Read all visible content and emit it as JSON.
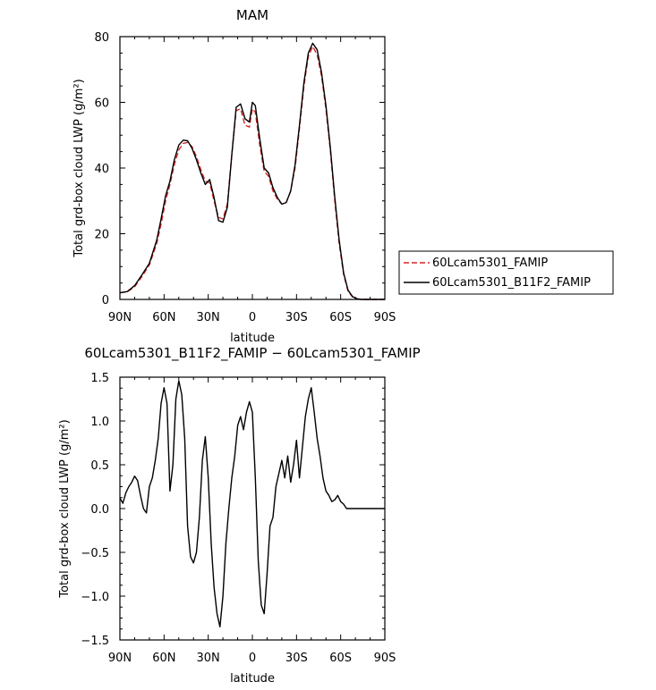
{
  "chart_data": [
    {
      "type": "line",
      "title": "MAM",
      "xlabel": "latitude",
      "ylabel": "Total grd-box cloud LWP",
      "yunit": "(g/m²)",
      "xlim": [
        90,
        -90
      ],
      "ylim": [
        0,
        80
      ],
      "xticks": [
        90,
        60,
        30,
        0,
        -30,
        -60,
        -90
      ],
      "xtick_labels": [
        "90N",
        "60N",
        "30N",
        "0",
        "30S",
        "60S",
        "90S"
      ],
      "yticks": [
        0,
        20,
        40,
        60,
        80
      ],
      "ytick_labels": [
        "0",
        "20",
        "40",
        "60",
        "80"
      ],
      "legend_position": "right",
      "series": [
        {
          "name": "60Lcam5301_FAMIP",
          "color": "#d62728",
          "dash": "dashed",
          "x": [
            90,
            85,
            80,
            75,
            70,
            65,
            62,
            59,
            56,
            53,
            50,
            47,
            44,
            41,
            38,
            35,
            32,
            29,
            26,
            23,
            20,
            17,
            14,
            11,
            8,
            5,
            2,
            0,
            -2,
            -5,
            -8,
            -11,
            -14,
            -17,
            -20,
            -23,
            -26,
            -29,
            -32,
            -35,
            -38,
            -41,
            -44,
            -47,
            -50,
            -53,
            -56,
            -59,
            -62,
            -65,
            -68,
            -71,
            -74,
            -77,
            -80,
            -85,
            -90
          ],
          "y": [
            2.0,
            2.3,
            3.8,
            7.0,
            10.5,
            17.0,
            23.0,
            30.0,
            35.0,
            41.0,
            45.5,
            47.5,
            47.8,
            46.5,
            43.5,
            39.5,
            36.0,
            35.5,
            30.0,
            25.0,
            24.5,
            29.0,
            44.0,
            57.5,
            58.0,
            53.0,
            52.5,
            58.0,
            57.0,
            47.0,
            39.0,
            37.5,
            33.0,
            30.5,
            29.0,
            29.5,
            33.0,
            40.0,
            52.0,
            65.0,
            74.0,
            77.0,
            74.5,
            68.0,
            58.0,
            45.0,
            30.0,
            17.0,
            7.5,
            2.5,
            0.8,
            0.2,
            0.0,
            0.0,
            0.0,
            0.0,
            0.0
          ]
        },
        {
          "name": "60Lcam5301_B11F2_FAMIP",
          "color": "#000000",
          "dash": "solid",
          "x": [
            90,
            85,
            80,
            75,
            70,
            65,
            62,
            59,
            56,
            53,
            50,
            47,
            44,
            41,
            38,
            35,
            32,
            29,
            26,
            23,
            20,
            17,
            14,
            11,
            8,
            5,
            2,
            0,
            -2,
            -5,
            -8,
            -11,
            -14,
            -17,
            -20,
            -23,
            -26,
            -29,
            -32,
            -35,
            -38,
            -41,
            -44,
            -47,
            -50,
            -53,
            -56,
            -59,
            -62,
            -65,
            -68,
            -71,
            -74,
            -77,
            -80,
            -85,
            -90
          ],
          "y": [
            2.0,
            2.4,
            4.2,
            7.5,
            11.0,
            18.0,
            24.5,
            31.5,
            36.0,
            42.5,
            47.0,
            48.5,
            48.3,
            46.0,
            42.5,
            38.5,
            35.0,
            36.5,
            31.0,
            24.0,
            23.5,
            28.0,
            44.0,
            58.5,
            59.5,
            55.0,
            54.0,
            60.0,
            59.0,
            49.0,
            40.0,
            38.5,
            34.0,
            31.0,
            29.0,
            29.5,
            33.0,
            41.0,
            53.0,
            66.0,
            75.0,
            78.0,
            76.0,
            69.0,
            59.0,
            46.0,
            31.0,
            18.0,
            8.0,
            2.8,
            0.9,
            0.2,
            0.0,
            0.0,
            0.0,
            0.0,
            0.0
          ]
        }
      ]
    },
    {
      "type": "line",
      "title": "60Lcam5301_B11F2_FAMIP − 60Lcam5301_FAMIP",
      "xlabel": "latitude",
      "ylabel": "Total grd-box cloud LWP",
      "yunit": "(g/m²)",
      "xlim": [
        90,
        -90
      ],
      "ylim": [
        -1.5,
        1.5
      ],
      "xticks": [
        90,
        60,
        30,
        0,
        -30,
        -60,
        -90
      ],
      "xtick_labels": [
        "90N",
        "60N",
        "30N",
        "0",
        "30S",
        "60S",
        "90S"
      ],
      "yticks": [
        -1.5,
        -1.0,
        -0.5,
        0.0,
        0.5,
        1.0,
        1.5
      ],
      "ytick_labels": [
        "−1.5",
        "−1.0",
        "−0.5",
        "0.0",
        "0.5",
        "1.0",
        "1.5"
      ],
      "series": [
        {
          "color": "#000000",
          "dash": "solid",
          "x": [
            90,
            88,
            86,
            84,
            82,
            80,
            78,
            76,
            74,
            72,
            70,
            68,
            66,
            64,
            62,
            60,
            58,
            56,
            54,
            52,
            50,
            48,
            46,
            44,
            42,
            40,
            38,
            36,
            34,
            32,
            30,
            28,
            26,
            24,
            22,
            20,
            18,
            16,
            14,
            12,
            10,
            8,
            6,
            4,
            2,
            0,
            -2,
            -4,
            -6,
            -8,
            -10,
            -12,
            -14,
            -16,
            -18,
            -20,
            -22,
            -24,
            -26,
            -28,
            -30,
            -32,
            -34,
            -36,
            -38,
            -40,
            -42,
            -44,
            -46,
            -48,
            -50,
            -52,
            -54,
            -56,
            -58,
            -60,
            -62,
            -64,
            -66,
            -68,
            -70,
            -72,
            -74,
            -76,
            -78,
            -80,
            -85,
            -90
          ],
          "y": [
            0.12,
            0.06,
            0.18,
            0.25,
            0.3,
            0.37,
            0.32,
            0.15,
            0.0,
            -0.05,
            0.25,
            0.35,
            0.55,
            0.8,
            1.2,
            1.38,
            1.2,
            0.2,
            0.5,
            1.25,
            1.46,
            1.3,
            0.8,
            -0.2,
            -0.55,
            -0.62,
            -0.5,
            -0.1,
            0.55,
            0.82,
            0.35,
            -0.4,
            -0.9,
            -1.2,
            -1.35,
            -1.0,
            -0.4,
            0.0,
            0.35,
            0.6,
            0.95,
            1.05,
            0.9,
            1.1,
            1.22,
            1.1,
            0.35,
            -0.6,
            -1.1,
            -1.2,
            -0.75,
            -0.2,
            -0.1,
            0.25,
            0.4,
            0.55,
            0.35,
            0.6,
            0.3,
            0.5,
            0.78,
            0.35,
            0.7,
            1.05,
            1.25,
            1.38,
            1.1,
            0.8,
            0.6,
            0.35,
            0.2,
            0.15,
            0.08,
            0.1,
            0.15,
            0.08,
            0.05,
            0.0,
            0.0,
            0.0,
            0.0,
            0.0,
            0.0,
            0.0,
            0.0,
            0.0,
            0.0,
            0.0
          ]
        }
      ]
    }
  ]
}
